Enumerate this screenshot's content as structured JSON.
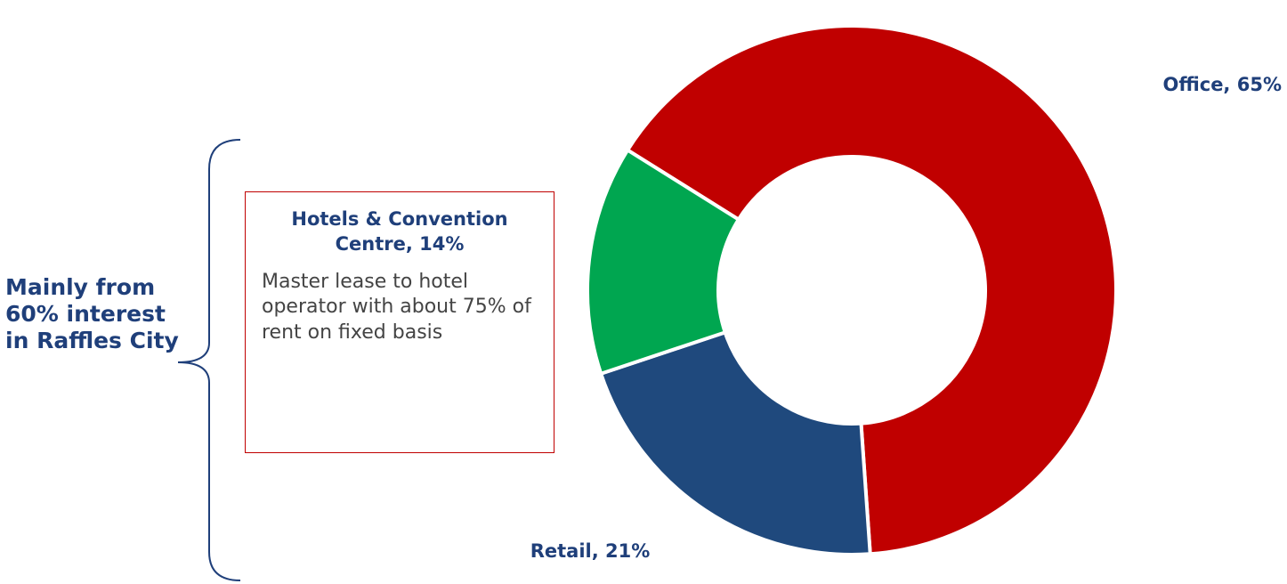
{
  "chart_data": {
    "type": "donut",
    "categories": [
      "Office",
      "Retail",
      "Hotels & Convention Centre"
    ],
    "values": [
      65,
      21,
      14
    ],
    "value_labels": [
      "Office, 65%",
      "Retail, 21%",
      "Hotels & Convention Centre, 14%"
    ],
    "colors": [
      "#c00000",
      "#1f497d",
      "#00a650"
    ],
    "annotations": {
      "hotel_note": "Master lease to hotel operator with about 75% of rent on fixed basis",
      "side_note": "Mainly from 60% interest in Raffles City"
    }
  }
}
